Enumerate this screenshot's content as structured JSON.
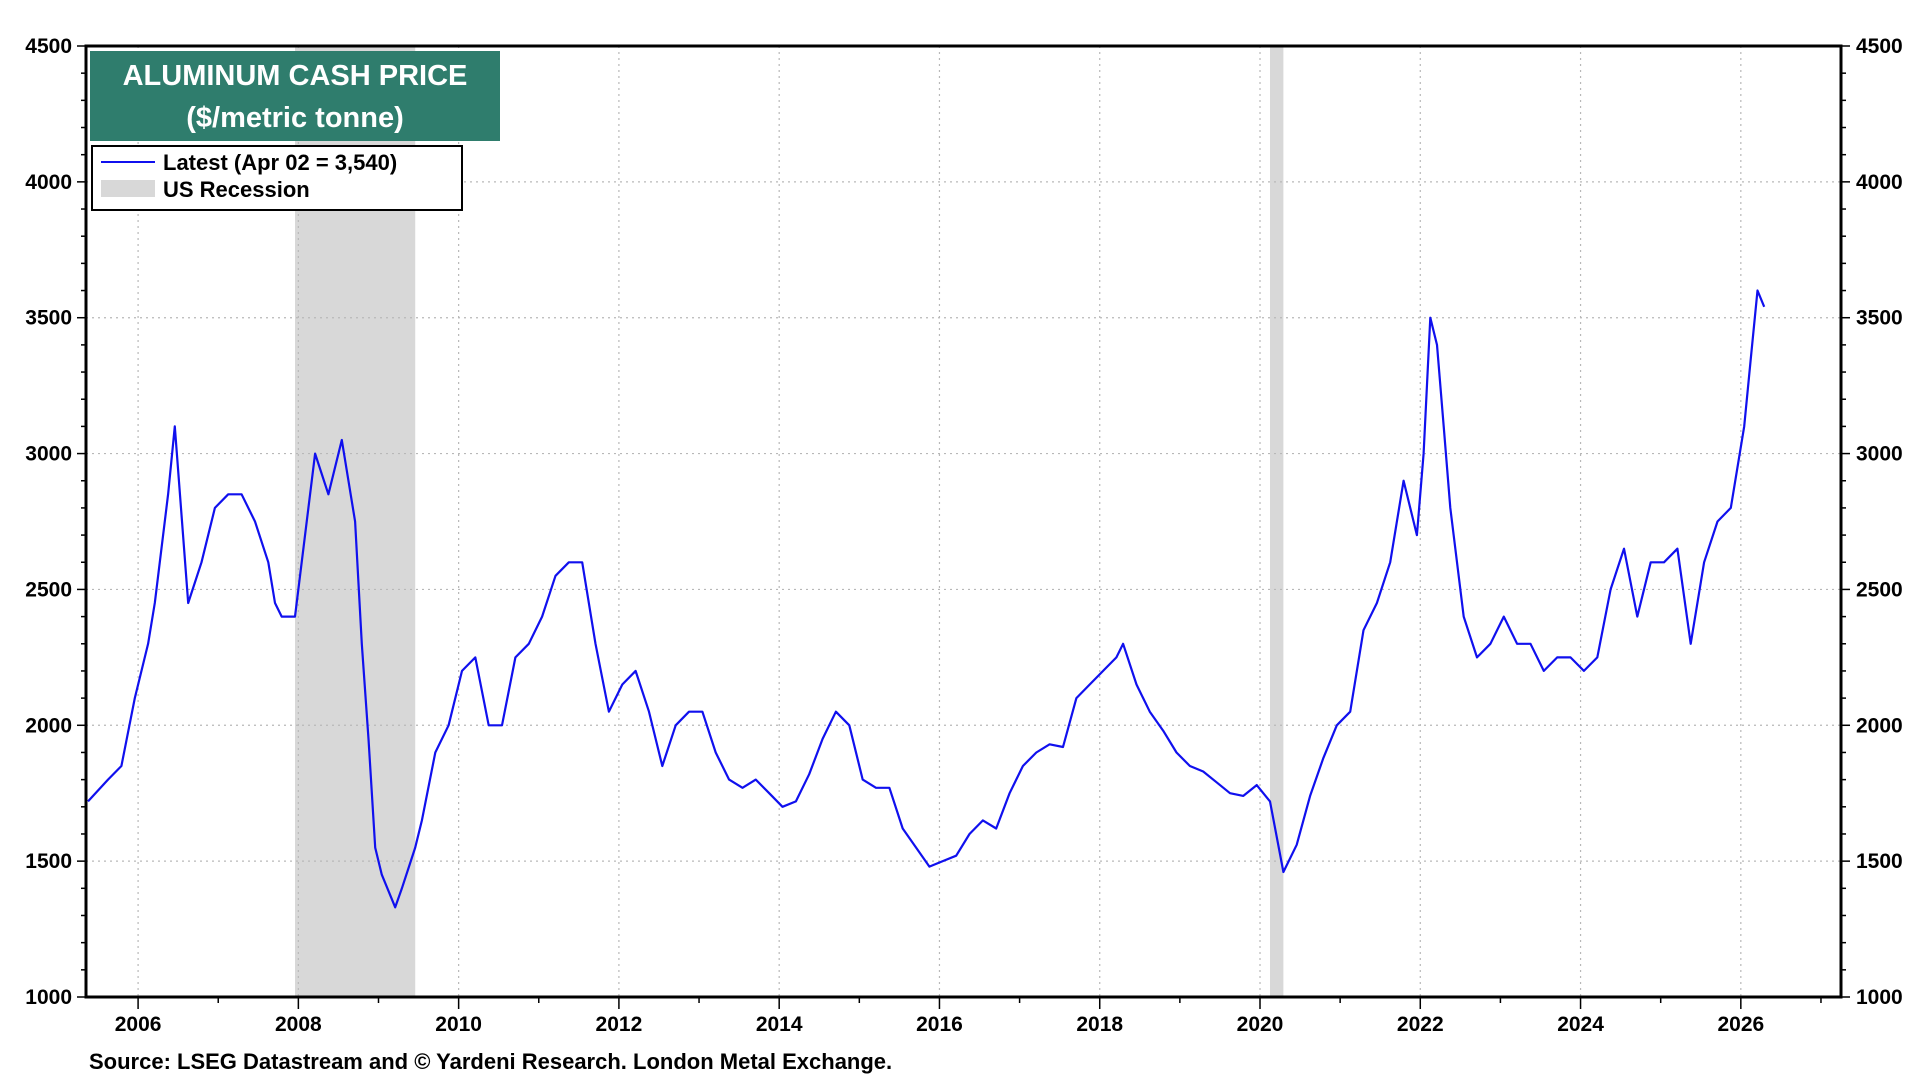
{
  "chart_data": {
    "type": "line",
    "title": "ALUMINUM CASH PRICE",
    "subtitle": "($/metric tonne)",
    "source": "Source: LSEG Datastream and © Yardeni Research. London Metal Exchange.",
    "ylim": [
      1000,
      4500
    ],
    "xlim": [
      2005.35,
      2027.25
    ],
    "y_ticks": [
      "1000",
      "1500",
      "2000",
      "2500",
      "3000",
      "3500",
      "4000",
      "4500"
    ],
    "x_ticks": [
      "2006",
      "2008",
      "2010",
      "2012",
      "2014",
      "2016",
      "2018",
      "2020",
      "2022",
      "2024",
      "2026"
    ],
    "grid": true,
    "legend_placement": "top-left",
    "legend": [
      {
        "label": "Latest (Apr 02 = 3,540)",
        "kind": "line",
        "color": "#1010ee"
      },
      {
        "label": "US Recession",
        "kind": "band",
        "color": "#d8d8d8"
      }
    ],
    "colors": {
      "line": "#1010ee",
      "recession": "#d8d8d8",
      "title_box": "#2f7d6d"
    },
    "recessions": [
      {
        "start": "2007-12",
        "end": "2009-06"
      },
      {
        "start": "2020-02",
        "end": "2020-04"
      }
    ],
    "series": [
      {
        "name": "Latest (Apr 02 = 3,540)",
        "x": [
          "2005-05",
          "2005-08",
          "2005-10",
          "2005-12",
          "2006-02",
          "2006-03",
          "2006-05",
          "2006-06",
          "2006-08",
          "2006-10",
          "2006-12",
          "2007-02",
          "2007-04",
          "2007-06",
          "2007-08",
          "2007-09",
          "2007-10",
          "2007-12",
          "2008-01",
          "2008-03",
          "2008-05",
          "2008-07",
          "2008-09",
          "2008-10",
          "2008-11",
          "2008-12",
          "2009-01",
          "2009-03",
          "2009-04",
          "2009-06",
          "2009-07",
          "2009-09",
          "2009-11",
          "2010-01",
          "2010-03",
          "2010-05",
          "2010-07",
          "2010-09",
          "2010-11",
          "2011-01",
          "2011-03",
          "2011-05",
          "2011-07",
          "2011-09",
          "2011-11",
          "2012-01",
          "2012-03",
          "2012-05",
          "2012-07",
          "2012-09",
          "2012-11",
          "2013-01",
          "2013-03",
          "2013-05",
          "2013-07",
          "2013-09",
          "2013-11",
          "2014-01",
          "2014-03",
          "2014-05",
          "2014-07",
          "2014-09",
          "2014-11",
          "2015-01",
          "2015-03",
          "2015-05",
          "2015-07",
          "2015-09",
          "2015-11",
          "2016-01",
          "2016-03",
          "2016-05",
          "2016-07",
          "2016-09",
          "2016-11",
          "2017-01",
          "2017-03",
          "2017-05",
          "2017-07",
          "2017-09",
          "2017-11",
          "2018-01",
          "2018-03",
          "2018-04",
          "2018-06",
          "2018-08",
          "2018-10",
          "2018-12",
          "2019-02",
          "2019-04",
          "2019-06",
          "2019-08",
          "2019-10",
          "2019-12",
          "2020-02",
          "2020-04",
          "2020-06",
          "2020-08",
          "2020-10",
          "2020-12",
          "2021-02",
          "2021-04",
          "2021-06",
          "2021-08",
          "2021-10",
          "2021-12",
          "2022-01",
          "2022-02",
          "2022-03",
          "2022-04",
          "2022-05",
          "2022-07",
          "2022-09",
          "2022-11",
          "2023-01",
          "2023-03",
          "2023-05",
          "2023-07",
          "2023-09",
          "2023-11",
          "2024-01",
          "2024-03",
          "2024-05",
          "2024-07",
          "2024-09",
          "2024-11",
          "2025-01",
          "2025-03",
          "2025-05",
          "2025-07",
          "2025-09",
          "2025-11",
          "2026-01",
          "2026-02",
          "2026-03",
          "2026-04"
        ],
        "y": [
          1720,
          1800,
          1850,
          2100,
          2300,
          2450,
          2850,
          3100,
          2450,
          2600,
          2800,
          2850,
          2850,
          2750,
          2600,
          2450,
          2400,
          2400,
          2600,
          3000,
          2850,
          3050,
          2750,
          2300,
          1950,
          1550,
          1450,
          1330,
          1400,
          1550,
          1650,
          1900,
          2000,
          2200,
          2250,
          2000,
          2000,
          2250,
          2300,
          2400,
          2550,
          2600,
          2600,
          2300,
          2050,
          2150,
          2200,
          2050,
          1850,
          2000,
          2050,
          2050,
          1900,
          1800,
          1770,
          1800,
          1750,
          1700,
          1720,
          1820,
          1950,
          2050,
          2000,
          1800,
          1770,
          1770,
          1620,
          1550,
          1480,
          1500,
          1520,
          1600,
          1650,
          1620,
          1750,
          1850,
          1900,
          1930,
          1920,
          2100,
          2150,
          2200,
          2250,
          2300,
          2150,
          2050,
          1980,
          1900,
          1850,
          1830,
          1790,
          1750,
          1740,
          1780,
          1720,
          1460,
          1560,
          1740,
          1880,
          2000,
          2050,
          2350,
          2450,
          2600,
          2900,
          2700,
          3000,
          3500,
          3400,
          3100,
          2800,
          2400,
          2250,
          2300,
          2400,
          2300,
          2300,
          2200,
          2250,
          2250,
          2200,
          2250,
          2500,
          2650,
          2400,
          2600,
          2600,
          2650,
          2300,
          2600,
          2750,
          2800,
          3100,
          3350,
          3600,
          3540
        ]
      }
    ]
  }
}
